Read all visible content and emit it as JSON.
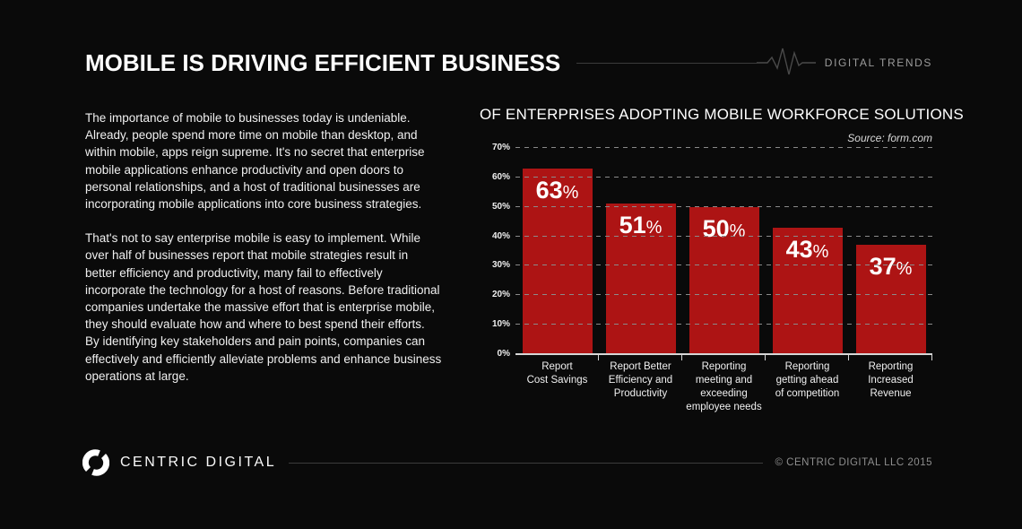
{
  "header": {
    "title": "MOBILE IS DRIVING EFFICIENT BUSINESS",
    "brand_label": "DIGITAL TRENDS"
  },
  "article": {
    "paragraph1": "The importance of mobile to businesses today is undeniable. Already, people spend more time on mobile than desktop, and within mobile, apps reign supreme. It's no secret that enterprise mobile applications enhance productivity and open doors to personal relationships, and a host of traditional businesses are incorporating mobile applications into core business strategies.",
    "paragraph2": "That's not to say enterprise mobile is easy to implement. While over half of businesses report that mobile strategies result in better efficiency and productivity, many fail to effectively incorporate the technology for a host of reasons. Before traditional companies undertake the massive effort that is enterprise mobile, they should evaluate how and where to best spend their efforts. By identifying key stakeholders and pain points, companies can effectively and efficiently alleviate problems and enhance business operations at large."
  },
  "chart_data": {
    "type": "bar",
    "title": "OF ENTERPRISES ADOPTING MOBILE WORKFORCE SOLUTIONS",
    "source": "Source:  form.com",
    "categories": [
      "Report Cost Savings",
      "Report Better Efficiency and Productivity",
      "Reporting meeting and exceeding employee needs",
      "Reporting getting ahead of competition",
      "Reporting Increased Revenue"
    ],
    "category_lines": [
      [
        "Report",
        "Cost Savings"
      ],
      [
        "Report Better",
        "Efficiency and",
        "Productivity"
      ],
      [
        "Reporting",
        "meeting and",
        "exceeding",
        "employee needs"
      ],
      [
        "Reporting",
        "getting ahead",
        "of competition"
      ],
      [
        "Reporting",
        "Increased Revenue"
      ]
    ],
    "values": [
      63,
      51,
      50,
      43,
      37
    ],
    "value_labels": [
      "63%",
      "51%",
      "50%",
      "43%",
      "37%"
    ],
    "xlabel": "",
    "ylabel": "",
    "ylim": [
      0,
      70
    ],
    "yticks": [
      "0%",
      "10%",
      "20%",
      "30%",
      "40%",
      "50%",
      "60%",
      "70%"
    ],
    "grid": true,
    "legend": false,
    "bar_color": "#ad1414"
  },
  "footer": {
    "brand": "CENTRIC DIGITAL",
    "copyright": "© CENTRIC DIGITAL LLC 2015"
  },
  "colors": {
    "background": "#0a0a0a",
    "bar_red": "#ad1414",
    "rule_gray": "#3c3c3c",
    "muted_text": "#9b9b9b",
    "grid_gray": "#8a8a8a",
    "baseline": "#d6d6d6"
  }
}
